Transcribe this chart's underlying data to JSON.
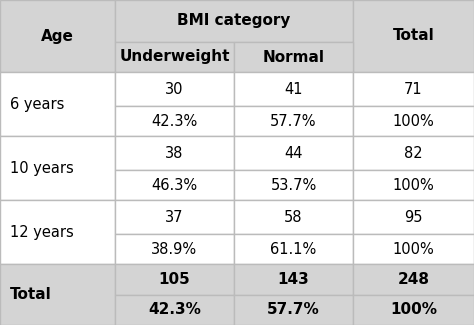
{
  "header_bmi": "BMI category",
  "header_age": "Age",
  "header_total": "Total",
  "col1": "Underweight",
  "col2": "Normal",
  "rows": [
    {
      "age": "6 years",
      "v1": "30",
      "v2": "41",
      "vt": "71",
      "p1": "42.3%",
      "p2": "57.7%",
      "pt": "100%"
    },
    {
      "age": "10 years",
      "v1": "38",
      "v2": "44",
      "vt": "82",
      "p1": "46.3%",
      "p2": "53.7%",
      "pt": "100%"
    },
    {
      "age": "12 years",
      "v1": "37",
      "v2": "58",
      "vt": "95",
      "p1": "38.9%",
      "p2": "61.1%",
      "pt": "100%"
    }
  ],
  "total_row": {
    "age": "Total",
    "v1": "105",
    "v2": "143",
    "vt": "248",
    "p1": "42.3%",
    "p2": "57.7%",
    "pt": "100%"
  },
  "bg_header": "#d4d4d4",
  "bg_white": "#ffffff",
  "bg_total": "#d4d4d4",
  "border_color": "#bbbbbb",
  "font_size_header": 11,
  "font_size_body": 10.5,
  "font_size_total": 11
}
